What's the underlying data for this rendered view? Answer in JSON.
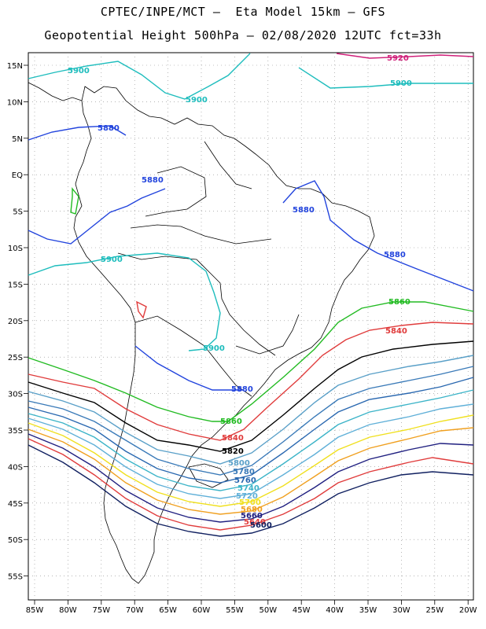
{
  "header": {
    "line1": "CPTEC/INPE/MCT –  Eta Model 15km – GFS",
    "line2": "Geopotential Height 500hPa – 02/08/2020 12UTC fct=33h"
  },
  "axes": {
    "lat_labels": [
      "15N",
      "10N",
      "5N",
      "EQ",
      "5S",
      "10S",
      "15S",
      "20S",
      "25S",
      "30S",
      "35S",
      "40S",
      "45S",
      "50S",
      "55S"
    ],
    "lon_labels": [
      "85W",
      "80W",
      "75W",
      "70W",
      "65W",
      "60W",
      "55W",
      "50W",
      "45W",
      "40W",
      "35W",
      "30W",
      "25W",
      "20W"
    ]
  },
  "contours": [
    {
      "value": "5920",
      "color": "#d0207a"
    },
    {
      "value": "5900",
      "color": "#1ebdbd"
    },
    {
      "value": "5880",
      "color": "#2244dd"
    },
    {
      "value": "5860",
      "color": "#22bb22"
    },
    {
      "value": "5840",
      "color": "#e03c3c"
    },
    {
      "value": "5820",
      "color": "#000000"
    },
    {
      "value": "5800",
      "color": "#5aa0c8"
    },
    {
      "value": "5780",
      "color": "#3a7ab8"
    },
    {
      "value": "5760",
      "color": "#2a68b0"
    },
    {
      "value": "5740",
      "color": "#3cb4c8"
    },
    {
      "value": "5720",
      "color": "#60b0d8"
    },
    {
      "value": "5700",
      "color": "#f0e020"
    },
    {
      "value": "5680",
      "color": "#f0a020"
    },
    {
      "value": "5660",
      "color": "#202080"
    },
    {
      "value": "5640",
      "color": "#e03c3c"
    },
    {
      "value": "5600",
      "color": "#102060"
    }
  ]
}
